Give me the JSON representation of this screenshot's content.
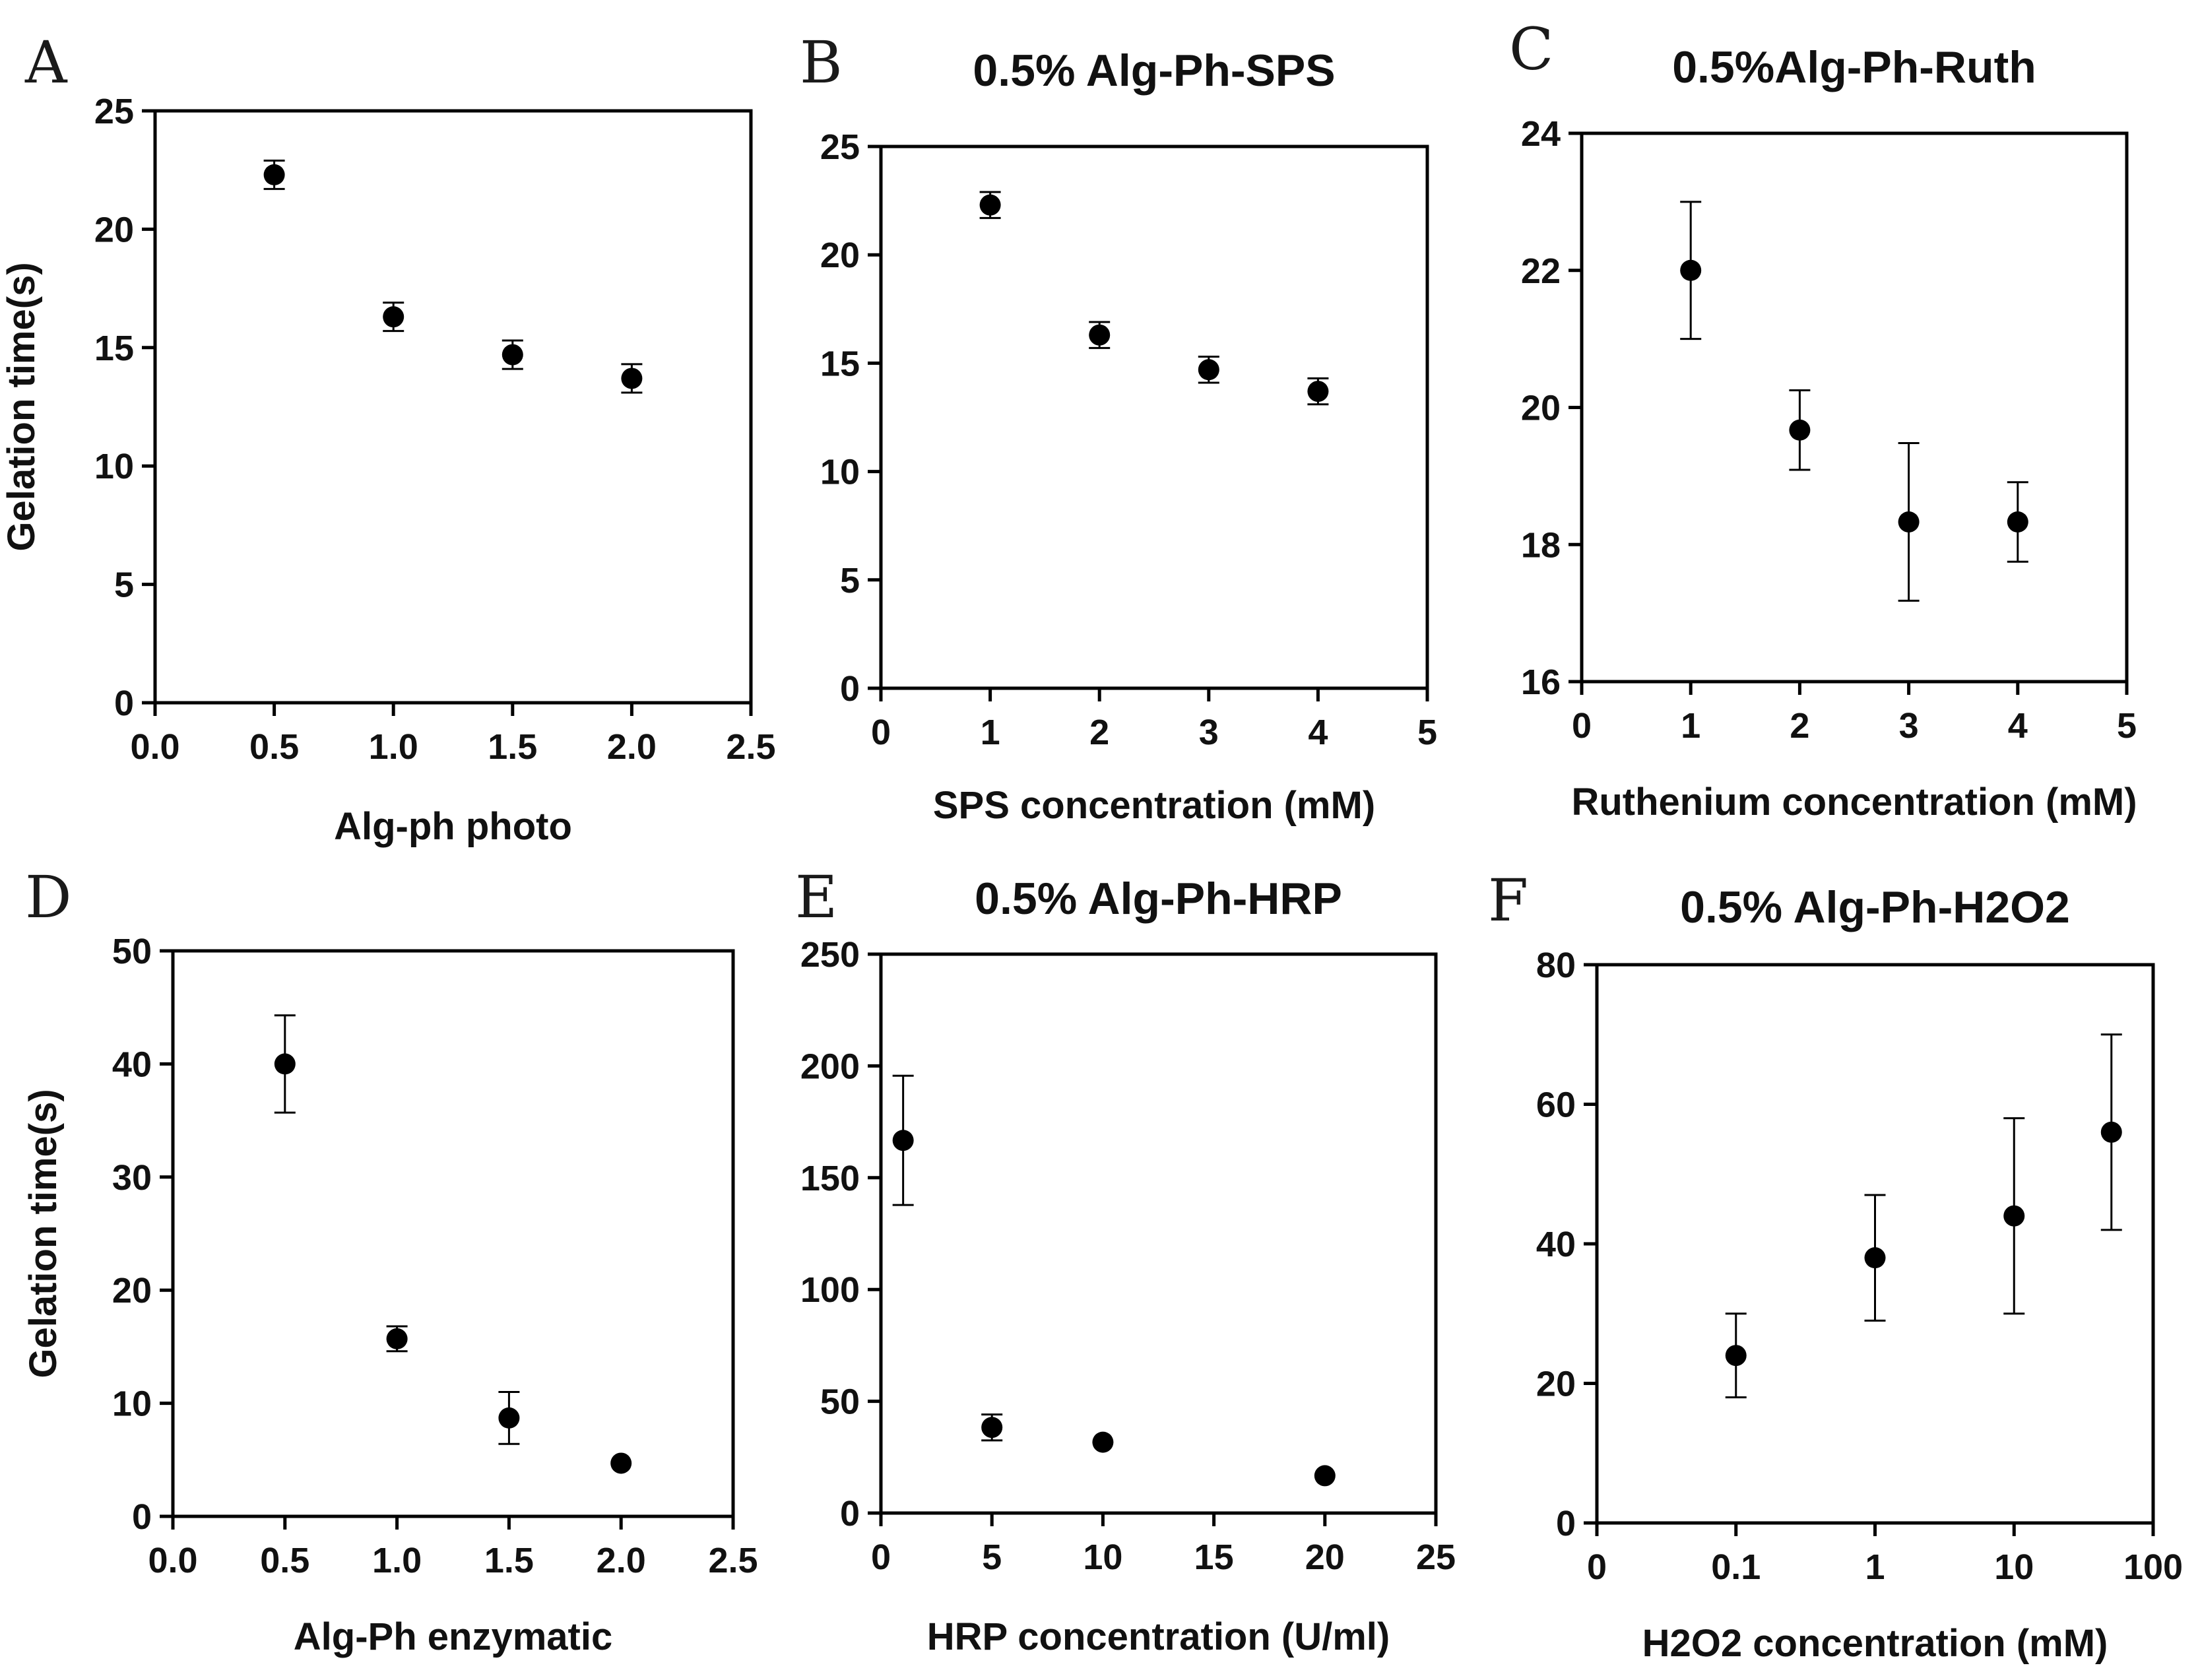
{
  "chart_data": [
    {
      "id": "A",
      "type": "scatter",
      "panel_letter": "A",
      "title": "",
      "xlabel": "Alg-ph photo",
      "ylabel": "Gelation time(s)",
      "xscale": "linear",
      "xlim": [
        0,
        2.5
      ],
      "ylim": [
        0,
        25
      ],
      "xticks": [
        0,
        0.5,
        1,
        1.5,
        2,
        2.5
      ],
      "xtick_labels": [
        "0.0",
        "0.5",
        "1.0",
        "1.5",
        "2.0",
        "2.5"
      ],
      "yticks": [
        0,
        5,
        10,
        15,
        20,
        25
      ],
      "ytick_labels": [
        "0",
        "5",
        "10",
        "15",
        "20",
        "25"
      ],
      "points": [
        {
          "x": 0.5,
          "y": 22.3,
          "err": 0.6
        },
        {
          "x": 1.0,
          "y": 16.3,
          "err": 0.6
        },
        {
          "x": 1.5,
          "y": 14.7,
          "err": 0.6
        },
        {
          "x": 2.0,
          "y": 13.7,
          "err": 0.6
        }
      ]
    },
    {
      "id": "B",
      "type": "scatter",
      "panel_letter": "B",
      "title": "0.5% Alg-Ph-SPS",
      "xlabel": "SPS concentration (mM)",
      "ylabel": "",
      "xscale": "linear",
      "xlim": [
        0,
        5
      ],
      "ylim": [
        0,
        25
      ],
      "xticks": [
        0,
        1,
        2,
        3,
        4,
        5
      ],
      "xtick_labels": [
        "0",
        "1",
        "2",
        "3",
        "4",
        "5"
      ],
      "yticks": [
        0,
        5,
        10,
        15,
        20,
        25
      ],
      "ytick_labels": [
        "0",
        "5",
        "10",
        "15",
        "20",
        "25"
      ],
      "points": [
        {
          "x": 1,
          "y": 22.3,
          "err": 0.6
        },
        {
          "x": 2,
          "y": 16.3,
          "err": 0.6
        },
        {
          "x": 3,
          "y": 14.7,
          "err": 0.6
        },
        {
          "x": 4,
          "y": 13.7,
          "err": 0.6
        }
      ]
    },
    {
      "id": "C",
      "type": "scatter",
      "panel_letter": "C",
      "title": "0.5%Alg-Ph-Ruth",
      "xlabel": "Ruthenium concentration (mM)",
      "ylabel": "",
      "xscale": "linear",
      "xlim": [
        0,
        5
      ],
      "ylim": [
        16,
        24
      ],
      "xticks": [
        0,
        1,
        2,
        3,
        4,
        5
      ],
      "xtick_labels": [
        "0",
        "1",
        "2",
        "3",
        "4",
        "5"
      ],
      "yticks": [
        16,
        18,
        20,
        22,
        24
      ],
      "ytick_labels": [
        "16",
        "18",
        "20",
        "22",
        "24"
      ],
      "points": [
        {
          "x": 1,
          "y": 22.0,
          "err": 1.0
        },
        {
          "x": 2,
          "y": 19.67,
          "err": 0.58
        },
        {
          "x": 3,
          "y": 18.33,
          "err": 1.15
        },
        {
          "x": 4,
          "y": 18.33,
          "err": 0.58
        }
      ]
    },
    {
      "id": "D",
      "type": "scatter",
      "panel_letter": "D",
      "title": "",
      "xlabel": "Alg-Ph enzymatic",
      "ylabel": "Gelation time(s)",
      "xscale": "linear",
      "xlim": [
        0,
        2.5
      ],
      "ylim": [
        0,
        50
      ],
      "xticks": [
        0,
        0.5,
        1,
        1.5,
        2,
        2.5
      ],
      "xtick_labels": [
        "0.0",
        "0.5",
        "1.0",
        "1.5",
        "2.0",
        "2.5"
      ],
      "yticks": [
        0,
        10,
        20,
        30,
        40,
        50
      ],
      "ytick_labels": [
        "0",
        "10",
        "20",
        "30",
        "40",
        "50"
      ],
      "points": [
        {
          "x": 0.5,
          "y": 40,
          "err": 4.3
        },
        {
          "x": 1.0,
          "y": 15.7,
          "err": 1.1
        },
        {
          "x": 1.5,
          "y": 8.7,
          "err": 2.3
        },
        {
          "x": 2.0,
          "y": 4.7,
          "err": 0
        }
      ]
    },
    {
      "id": "E",
      "type": "scatter",
      "panel_letter": "E",
      "title": "0.5% Alg-Ph-HRP",
      "xlabel": "HRP concentration (U/ml)",
      "ylabel": "",
      "xscale": "linear",
      "xlim": [
        0,
        25
      ],
      "ylim": [
        0,
        250
      ],
      "xticks": [
        0,
        5,
        10,
        15,
        20,
        25
      ],
      "xtick_labels": [
        "0",
        "5",
        "10",
        "15",
        "20",
        "25"
      ],
      "yticks": [
        0,
        50,
        100,
        150,
        200,
        250
      ],
      "ytick_labels": [
        "0",
        "50",
        "100",
        "150",
        "200",
        "250"
      ],
      "points": [
        {
          "x": 1,
          "y": 166.7,
          "err": 28.9
        },
        {
          "x": 5,
          "y": 38.3,
          "err": 5.8
        },
        {
          "x": 10,
          "y": 31.7,
          "err": 0
        },
        {
          "x": 20,
          "y": 16.7,
          "err": 0
        }
      ]
    },
    {
      "id": "F",
      "type": "scatter",
      "panel_letter": "F",
      "title": "0.5% Alg-Ph-H2O2",
      "xlabel": "H2O2 concentration (mM)",
      "ylabel": "",
      "xscale": "categorical",
      "xlim": [
        0,
        4
      ],
      "ylim": [
        0,
        80
      ],
      "xticks": [
        0,
        1,
        2,
        3,
        4
      ],
      "xtick_labels": [
        "0",
        "0.1",
        "1",
        "10",
        "100"
      ],
      "yticks": [
        0,
        20,
        40,
        60,
        80
      ],
      "ytick_labels": [
        "0",
        "20",
        "40",
        "60",
        "80"
      ],
      "points": [
        {
          "x": 1,
          "y": 24,
          "err": 6
        },
        {
          "x": 2,
          "y": 38,
          "err": 9
        },
        {
          "x": 3,
          "y": 44,
          "err": 14
        },
        {
          "x": 3.7,
          "y": 56,
          "err": 14
        }
      ]
    }
  ]
}
